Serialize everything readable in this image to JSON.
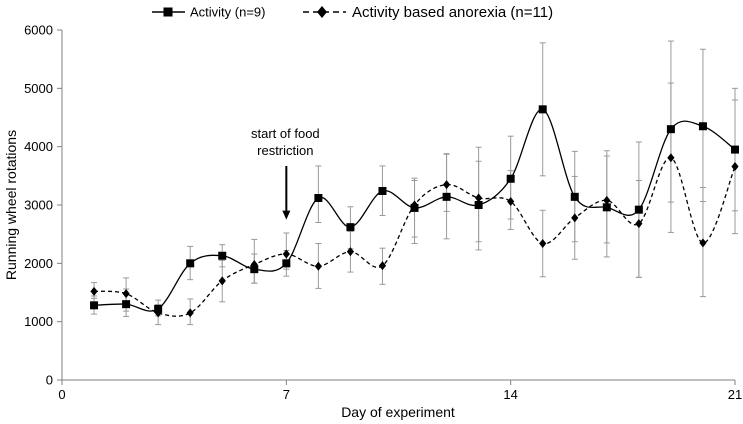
{
  "chart_data": {
    "type": "line",
    "title": "",
    "xlabel": "Day of experiment",
    "ylabel": "Running wheel rotations",
    "xlim": [
      0,
      21
    ],
    "ylim": [
      0,
      6000
    ],
    "xticks": [
      0,
      7,
      14,
      21
    ],
    "yticks": [
      0,
      1000,
      2000,
      3000,
      4000,
      5000,
      6000
    ],
    "grid": false,
    "legend_position": "top",
    "x": [
      1,
      2,
      3,
      4,
      5,
      6,
      7,
      8,
      9,
      10,
      11,
      12,
      13,
      14,
      15,
      16,
      17,
      18,
      19,
      20,
      21
    ],
    "series": [
      {
        "name": "Activity (n=9)",
        "marker": "square",
        "line_style": "solid",
        "values": [
          1280,
          1300,
          1220,
          2000,
          2130,
          1900,
          2000,
          3120,
          2620,
          3240,
          2950,
          3140,
          3000,
          3450,
          4640,
          3140,
          2960,
          2920,
          4300,
          4350,
          3950
        ],
        "error_low": [
          1130,
          1090,
          1100,
          1720,
          1940,
          1660,
          1780,
          2700,
          2250,
          2820,
          2450,
          2420,
          2230,
          2760,
          3500,
          2370,
          2110,
          1760,
          3050,
          3060,
          2900
        ],
        "error_high": [
          1440,
          1560,
          1370,
          2290,
          2320,
          2160,
          2220,
          3670,
          2970,
          3670,
          3460,
          3870,
          3990,
          4180,
          5780,
          3920,
          3930,
          4080,
          5810,
          5670,
          5000
        ]
      },
      {
        "name": "Activity based anorexia (n=11)",
        "marker": "diamond",
        "line_style": "dashed",
        "values": [
          1520,
          1480,
          1150,
          1150,
          1700,
          1980,
          2160,
          1950,
          2200,
          1960,
          3000,
          3350,
          3120,
          3060,
          2340,
          2780,
          3080,
          2680,
          3810,
          2350,
          3660
        ],
        "error_low": [
          1400,
          1180,
          950,
          950,
          1340,
          1660,
          1900,
          1570,
          1850,
          1640,
          2340,
          2890,
          2370,
          2580,
          1770,
          2070,
          2350,
          1760,
          2530,
          1430,
          2510
        ],
        "error_high": [
          1670,
          1750,
          1290,
          1390,
          2050,
          2410,
          2520,
          2340,
          2550,
          2260,
          3420,
          3880,
          3750,
          3590,
          2910,
          3490,
          3840,
          3420,
          5090,
          3300,
          4800
        ]
      }
    ],
    "annotations": [
      {
        "text_lines": [
          "start of food",
          "restriction"
        ],
        "x": 7,
        "arrow_to_value": 2750
      }
    ]
  }
}
